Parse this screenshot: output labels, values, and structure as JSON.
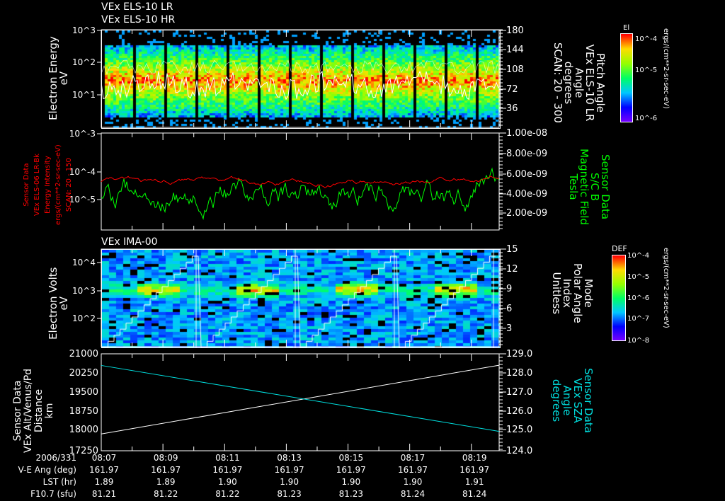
{
  "titles": {
    "p1_line1": "VEx ELS-10 LR",
    "p1_line2": "VEx ELS-10 HR",
    "p3": "VEx IMA-00"
  },
  "panel1": {
    "left_label": [
      "Electron Energy",
      "eV"
    ],
    "right_label": [
      "Pitch Angle",
      "VEx ELS-10 LR",
      "Angle",
      "degrees",
      "SCAN: 20 - 300"
    ],
    "left_ticks": [
      "10^3",
      "10^2",
      "10^1"
    ],
    "right_ticks": [
      "180",
      "144",
      "108",
      "72",
      "36"
    ],
    "colorbar": {
      "title": "El",
      "ticks": [
        "10^-4",
        "10^-5",
        "10^-6"
      ],
      "unit": "ergs/(cm**2-sr-sec-eV)"
    }
  },
  "panel2": {
    "left_label": [
      "Sensor Data",
      "VEx ELS-06 LR-Bk",
      "Energy Intensity",
      "ergs/(cm**2-sr-sec-eV)",
      "SCAN: 20 - 150"
    ],
    "right_label": [
      "Sensor Data",
      "S/C B",
      "Magnetic Field",
      "Tesla"
    ],
    "left_ticks": [
      "10^-3",
      "10^-4",
      "10^-5"
    ],
    "right_ticks": [
      "1.00e-08",
      "8.00e-09",
      "6.00e-09",
      "4.00e-09",
      "2.00e-09"
    ],
    "colors": {
      "left": "#ff0000",
      "right": "#00ff00"
    }
  },
  "panel3": {
    "left_label": [
      "Electron Volts",
      "eV"
    ],
    "right_label": [
      "Mode",
      "Polar Angle",
      "Index",
      "Unitless"
    ],
    "left_ticks": [
      "10^4",
      "10^3",
      "10^2"
    ],
    "right_ticks": [
      "15",
      "12",
      "9",
      "6",
      "3"
    ],
    "colorbar": {
      "title": "DEF",
      "ticks": [
        "10^-4",
        "10^-5",
        "10^-6",
        "10^-7",
        "10^-8"
      ],
      "unit": "ergs/(cm**2-sr-sec-eV)"
    }
  },
  "panel4": {
    "left_label": [
      "Sensor Data",
      "VEx Alt/Venus/Pd",
      "Distance",
      "km"
    ],
    "right_label": [
      "Sensor Data",
      "VEx SZA",
      "Angle",
      "degrees"
    ],
    "left_ticks": [
      "21000",
      "20250",
      "19500",
      "18750",
      "18000",
      "17250"
    ],
    "right_ticks": [
      "129.0",
      "128.0",
      "127.0",
      "126.0",
      "125.0",
      "124.0"
    ],
    "colors": {
      "distance": "#ffffff",
      "sza": "#00e0e0"
    }
  },
  "chart_data": {
    "type": "line",
    "x_range": [
      "08:07",
      "08:19.9"
    ],
    "series": [
      {
        "name": "VEx Alt/Venus/Pd Distance (km)",
        "x": [
          "08:07",
          "08:19.9"
        ],
        "y": [
          17900,
          20560
        ],
        "ylim": [
          17250,
          21000
        ]
      },
      {
        "name": "VEx SZA (degrees)",
        "x": [
          "08:07",
          "08:19.9"
        ],
        "y": [
          128.4,
          125.0
        ],
        "ylim": [
          124.0,
          129.0
        ]
      }
    ]
  },
  "footer": {
    "row_labels": [
      "2006/331",
      "V-E Ang (deg)",
      "LST (hr)",
      "F10.7 (sfu)"
    ],
    "columns": [
      {
        "time": "08:07",
        "ve_ang": "161.97",
        "lst": "1.89",
        "f107": "81.21"
      },
      {
        "time": "08:09",
        "ve_ang": "161.97",
        "lst": "1.89",
        "f107": "81.22"
      },
      {
        "time": "08:11",
        "ve_ang": "161.97",
        "lst": "1.90",
        "f107": "81.22"
      },
      {
        "time": "08:13",
        "ve_ang": "161.97",
        "lst": "1.90",
        "f107": "81.23"
      },
      {
        "time": "08:15",
        "ve_ang": "161.97",
        "lst": "1.90",
        "f107": "81.23"
      },
      {
        "time": "08:17",
        "ve_ang": "161.97",
        "lst": "1.90",
        "f107": "81.24"
      },
      {
        "time": "08:19",
        "ve_ang": "161.97",
        "lst": "1.91",
        "f107": "81.24"
      }
    ]
  }
}
